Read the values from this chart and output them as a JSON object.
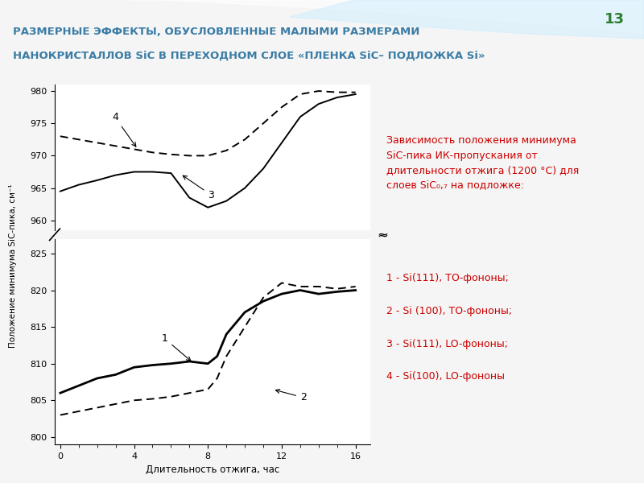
{
  "title_line1": "РАЗМЕРНЫЕ ЭФФЕКТЫ, ОБУСЛОВЛЕННЫЕ МАЛЫМИ РАЗМЕРАМИ",
  "title_line2": "НАНОКРИСТАЛЛОВ SiC В ПЕРЕХОДНОМ СЛОЕ «ПЛЕНКА SiC– ПОДЛОЖКА Si»",
  "slide_number": "13",
  "xlabel": "Длительность отжига, час",
  "ylabel": "Положение минимума SiC-пика, см⁻¹",
  "bg_color": "#f0f4f8",
  "title_color": "#3a7ca5",
  "slide_num_color": "#2e7d32",
  "x_ticks": [
    0,
    4,
    8,
    12,
    16
  ],
  "upper_ylim": [
    958.5,
    981
  ],
  "lower_ylim": [
    799,
    827
  ],
  "upper_yticks": [
    960,
    965,
    970,
    975,
    980
  ],
  "lower_yticks": [
    800,
    805,
    810,
    815,
    820,
    825
  ],
  "curve1_x": [
    0,
    1,
    2,
    3,
    4,
    5,
    6,
    7,
    8,
    8.5,
    9,
    10,
    11,
    12,
    13,
    14,
    15,
    16
  ],
  "curve1_y": [
    806,
    807,
    808,
    808.5,
    809.5,
    809.8,
    810,
    810.3,
    810.0,
    811,
    814,
    817,
    818.5,
    819.5,
    820,
    819.5,
    819.8,
    820
  ],
  "curve2_x": [
    0,
    1,
    2,
    3,
    4,
    5,
    6,
    7,
    8,
    8.5,
    9,
    10,
    11,
    12,
    13,
    14,
    15,
    16
  ],
  "curve2_y": [
    803,
    803.5,
    804,
    804.5,
    805,
    805.2,
    805.5,
    806,
    806.5,
    808,
    811,
    815,
    819,
    821,
    820.5,
    820.5,
    820.2,
    820.5
  ],
  "curve3_x": [
    0,
    1,
    2,
    3,
    4,
    5,
    6,
    7,
    8,
    9,
    10,
    11,
    12,
    13,
    14,
    15,
    16
  ],
  "curve3_y": [
    964.5,
    965.5,
    966.2,
    967,
    967.5,
    967.5,
    967.3,
    963.5,
    962,
    963,
    965,
    968,
    972,
    976,
    978,
    979,
    979.5
  ],
  "curve4_x": [
    0,
    1,
    2,
    3,
    4,
    5,
    6,
    7,
    8,
    9,
    10,
    11,
    12,
    13,
    14,
    15,
    16
  ],
  "curve4_y": [
    973,
    972.5,
    972,
    971.5,
    971,
    970.5,
    970.2,
    970.0,
    970.0,
    970.8,
    972.5,
    975,
    977.5,
    979.5,
    980,
    979.8,
    979.8
  ],
  "legend_title": "Зависимость положения минимума\nSiC-пика ИК-пропускания от\nдлительности отжига (1200 °C) для\nслоев SiC₀,₇ на подложке:",
  "legend_items": [
    "1 - Si(111), ТО-фононы;",
    "2 - Si (100), ТО-фононы;",
    "3 - Si(111), LO-фононы;",
    "4 - Si(100), LO-фононы"
  ],
  "legend_color": "#cc0000",
  "header_colors": [
    "#7ec8d8",
    "#a8dce8",
    "#c5e8f0",
    "#e0f2f8"
  ],
  "wave_color": "#ffffff"
}
